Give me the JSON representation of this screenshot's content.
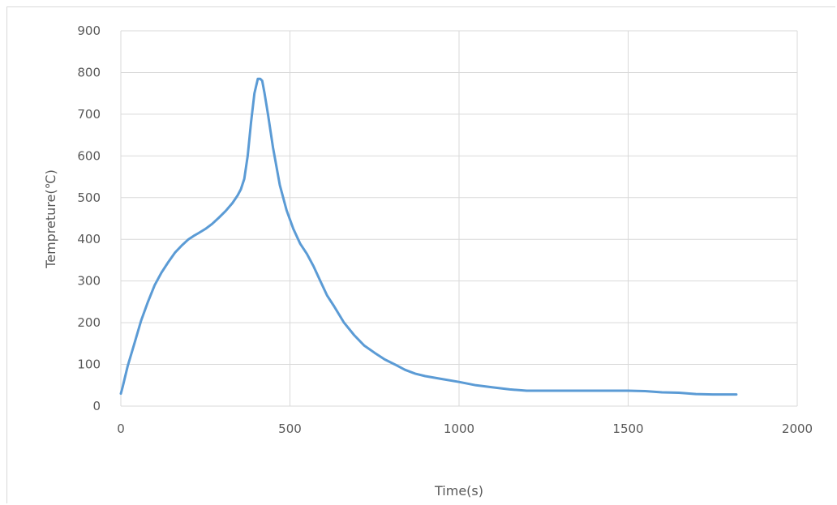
{
  "chart_data": {
    "type": "line",
    "title": "",
    "xlabel": "Time(s)",
    "ylabel": "Tempreture(℃)",
    "xlim": [
      0,
      2000
    ],
    "ylim": [
      0,
      900
    ],
    "x_ticks": [
      0,
      500,
      1000,
      1500,
      2000
    ],
    "y_ticks": [
      0,
      100,
      200,
      300,
      400,
      500,
      600,
      700,
      800,
      900
    ],
    "grid": true,
    "legend": "none",
    "line_color": "#5b9bd5",
    "series": [
      {
        "x": [
          0,
          5,
          20,
          40,
          60,
          80,
          100,
          120,
          140,
          160,
          180,
          200,
          215,
          230,
          250,
          270,
          290,
          310,
          330,
          345,
          355,
          365,
          375,
          385,
          395,
          405,
          412,
          418,
          425,
          435,
          450,
          470,
          490,
          510,
          530,
          550,
          570,
          590,
          610,
          630,
          660,
          690,
          720,
          750,
          780,
          810,
          840,
          870,
          900,
          950,
          1000,
          1050,
          1100,
          1150,
          1200,
          1300,
          1400,
          1500,
          1550,
          1600,
          1650,
          1700,
          1750,
          1800,
          1820
        ],
        "y": [
          30,
          45,
          95,
          150,
          205,
          250,
          290,
          320,
          345,
          368,
          385,
          400,
          408,
          415,
          425,
          437,
          452,
          468,
          487,
          505,
          520,
          545,
          600,
          680,
          750,
          785,
          785,
          780,
          750,
          700,
          620,
          530,
          470,
          425,
          390,
          365,
          335,
          300,
          265,
          240,
          200,
          170,
          145,
          128,
          112,
          100,
          87,
          78,
          72,
          65,
          58,
          50,
          45,
          40,
          37,
          37,
          37,
          37,
          36,
          33,
          32,
          29,
          28,
          28,
          28
        ]
      }
    ]
  }
}
